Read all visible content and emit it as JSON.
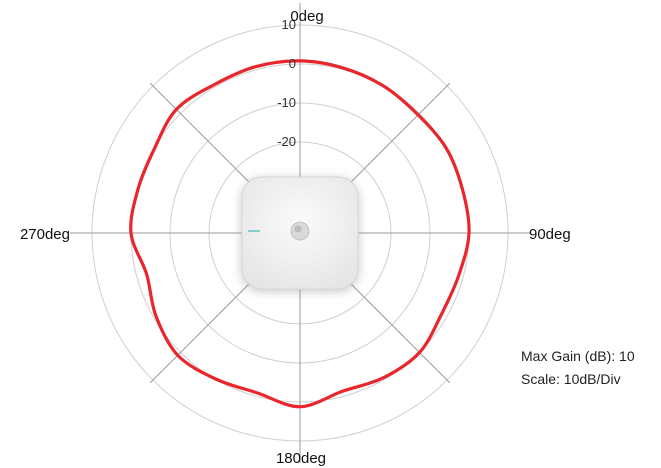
{
  "chart_data": {
    "type": "polar-line",
    "title": "",
    "angle_labels": [
      {
        "deg": 0,
        "text": "0deg"
      },
      {
        "deg": 90,
        "text": "90deg"
      },
      {
        "deg": 180,
        "text": "180deg"
      },
      {
        "deg": 270,
        "text": "270deg"
      }
    ],
    "ring_labels": [
      "10",
      "0",
      "-10",
      "-20"
    ],
    "r_range": [
      -30,
      10
    ],
    "r_step": 10,
    "spokes_deg": [
      0,
      45,
      90,
      135,
      180,
      225,
      270,
      315
    ],
    "grid": true,
    "series": [
      {
        "color": "#e8262b",
        "angle_deg": [
          0,
          15,
          30,
          45,
          60,
          75,
          90,
          105,
          120,
          135,
          150,
          165,
          180,
          195,
          210,
          225,
          240,
          255,
          270,
          285,
          300,
          315,
          330,
          345,
          360
        ],
        "gain_db": [
          0.8,
          0.4,
          0,
          -0.5,
          0,
          -0.2,
          0,
          -1.2,
          -1.5,
          0,
          -0.5,
          -1.3,
          1.2,
          -0.9,
          -0.1,
          1,
          -0.7,
          -2.6,
          0,
          -0.3,
          -0.2,
          1.5,
          0.6,
          0.8,
          0.8
        ]
      }
    ]
  },
  "info": {
    "max_gain": "Max Gain (dB): 10",
    "scale": "Scale: 10dB/Div"
  },
  "colors": {
    "grid": "#cfcfcf",
    "spoke": "#9a9a9a",
    "trace": "#e8262b",
    "device_face": "#f1f1f1",
    "device_shadow": "#bdbdbd"
  }
}
